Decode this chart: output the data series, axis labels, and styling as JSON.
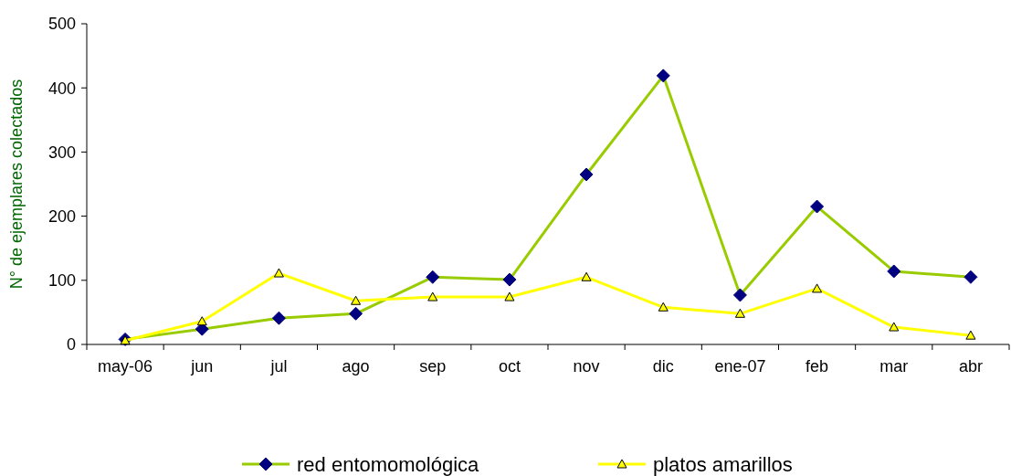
{
  "chart_data": {
    "type": "line",
    "ylabel": "N° de ejemplares colectados",
    "categories": [
      "may-06",
      "jun",
      "jul",
      "ago",
      "sep",
      "oct",
      "nov",
      "dic",
      "ene-07",
      "feb",
      "mar",
      "abr"
    ],
    "series": [
      {
        "name": "red entomomológica",
        "color": "#99cc00",
        "marker": "diamond",
        "values": [
          8,
          24,
          41,
          48,
          105,
          101,
          265,
          419,
          77,
          215,
          114,
          105
        ]
      },
      {
        "name": "platos amarillos",
        "color": "#ffff00",
        "marker": "triangle",
        "values": [
          6,
          36,
          111,
          68,
          74,
          74,
          105,
          58,
          48,
          87,
          27,
          14
        ]
      }
    ],
    "ylim": [
      0,
      500
    ],
    "yticks": [
      0,
      100,
      200,
      300,
      400,
      500
    ],
    "grid": false,
    "legend": "bottom",
    "line_style": "solid"
  }
}
